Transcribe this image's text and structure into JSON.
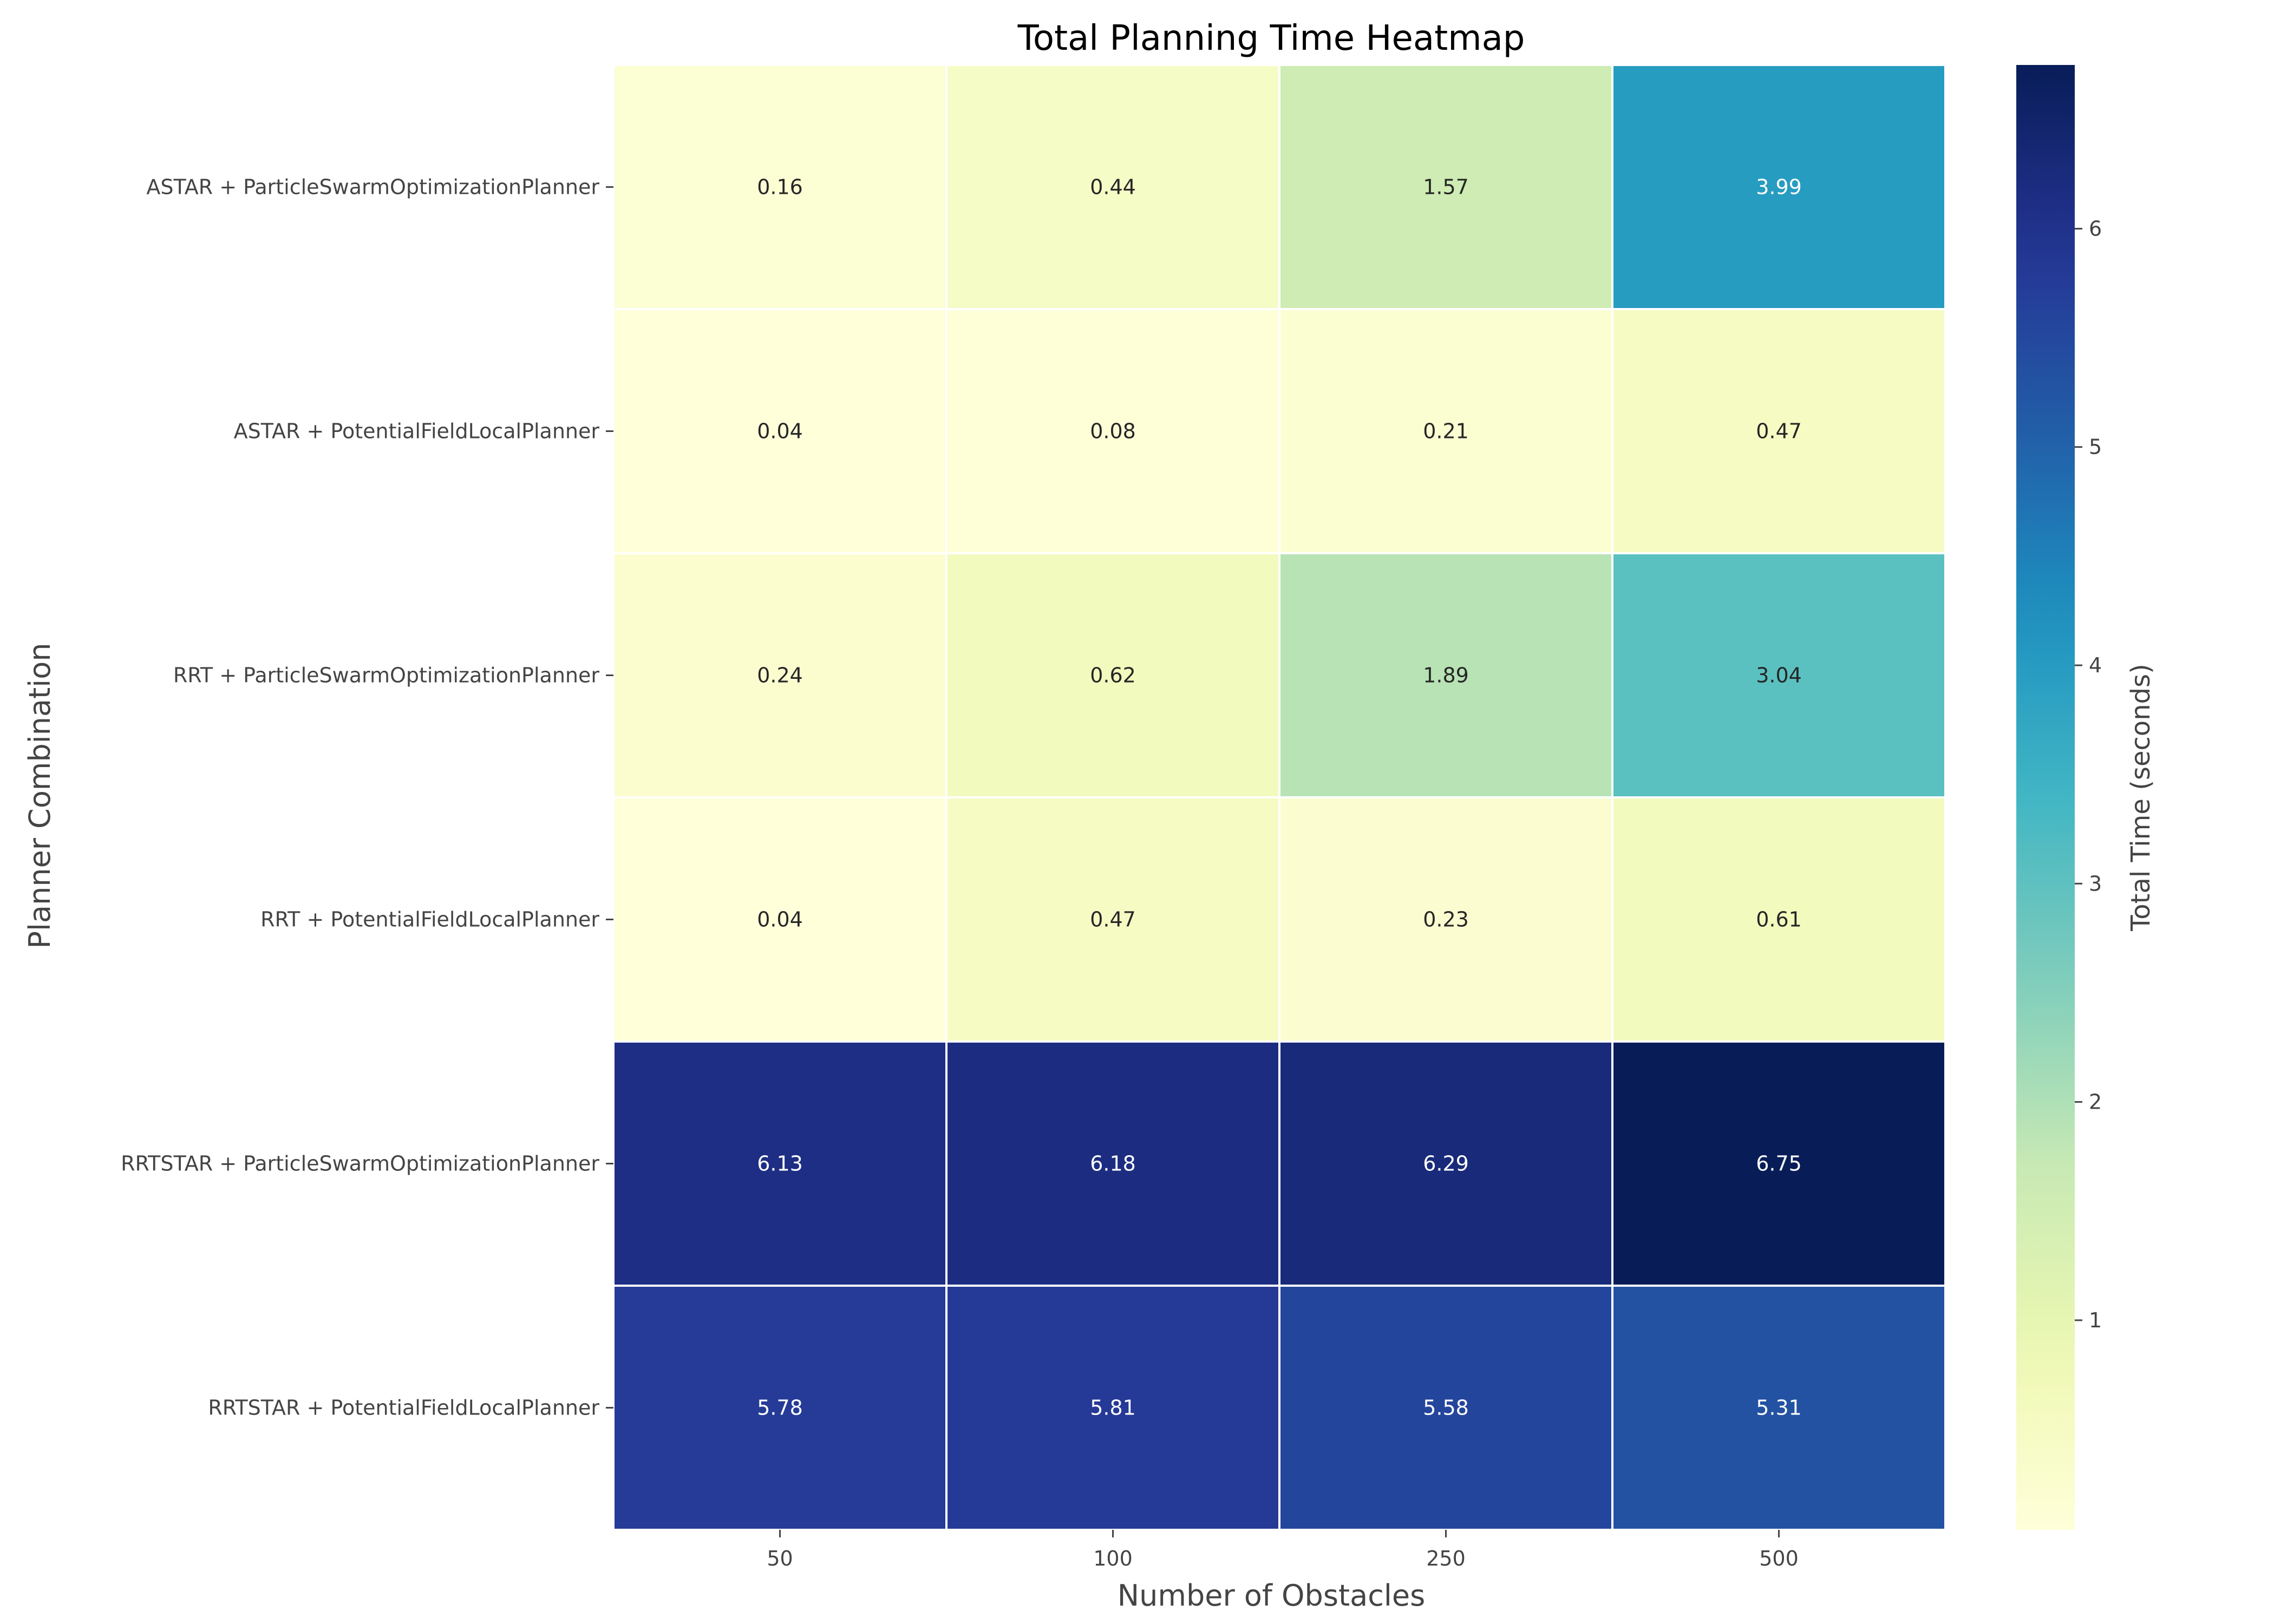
{
  "chart_data": {
    "type": "heatmap",
    "title": "Total Planning Time Heatmap",
    "xlabel": "Number of Obstacles",
    "ylabel": "Planner Combination",
    "x_categories": [
      "50",
      "100",
      "250",
      "500"
    ],
    "y_categories": [
      "ASTAR + ParticleSwarmOptimizationPlanner",
      "ASTAR + PotentialFieldLocalPlanner",
      "RRT + ParticleSwarmOptimizationPlanner",
      "RRT + PotentialFieldLocalPlanner",
      "RRTSTAR + ParticleSwarmOptimizationPlanner",
      "RRTSTAR + PotentialFieldLocalPlanner"
    ],
    "values": [
      [
        0.16,
        0.44,
        1.57,
        3.99
      ],
      [
        0.04,
        0.08,
        0.21,
        0.47
      ],
      [
        0.24,
        0.62,
        1.89,
        3.04
      ],
      [
        0.04,
        0.47,
        0.23,
        0.61
      ],
      [
        6.13,
        6.18,
        6.29,
        6.75
      ],
      [
        5.78,
        5.81,
        5.58,
        5.31
      ]
    ],
    "value_labels": [
      [
        "0.16",
        "0.44",
        "1.57",
        "3.99"
      ],
      [
        "0.04",
        "0.08",
        "0.21",
        "0.47"
      ],
      [
        "0.24",
        "0.62",
        "1.89",
        "3.04"
      ],
      [
        "0.04",
        "0.47",
        "0.23",
        "0.61"
      ],
      [
        "6.13",
        "6.18",
        "6.29",
        "6.75"
      ],
      [
        "5.78",
        "5.81",
        "5.58",
        "5.31"
      ]
    ],
    "colormap": "YlGnBu",
    "colorbar": {
      "label": "Total Time (seconds)",
      "range": [
        0.04,
        6.75
      ],
      "ticks": [
        1,
        2,
        3,
        4,
        5,
        6
      ],
      "tick_labels": [
        "1",
        "2",
        "3",
        "4",
        "5",
        "6"
      ]
    },
    "annotated": true,
    "grid": false
  }
}
